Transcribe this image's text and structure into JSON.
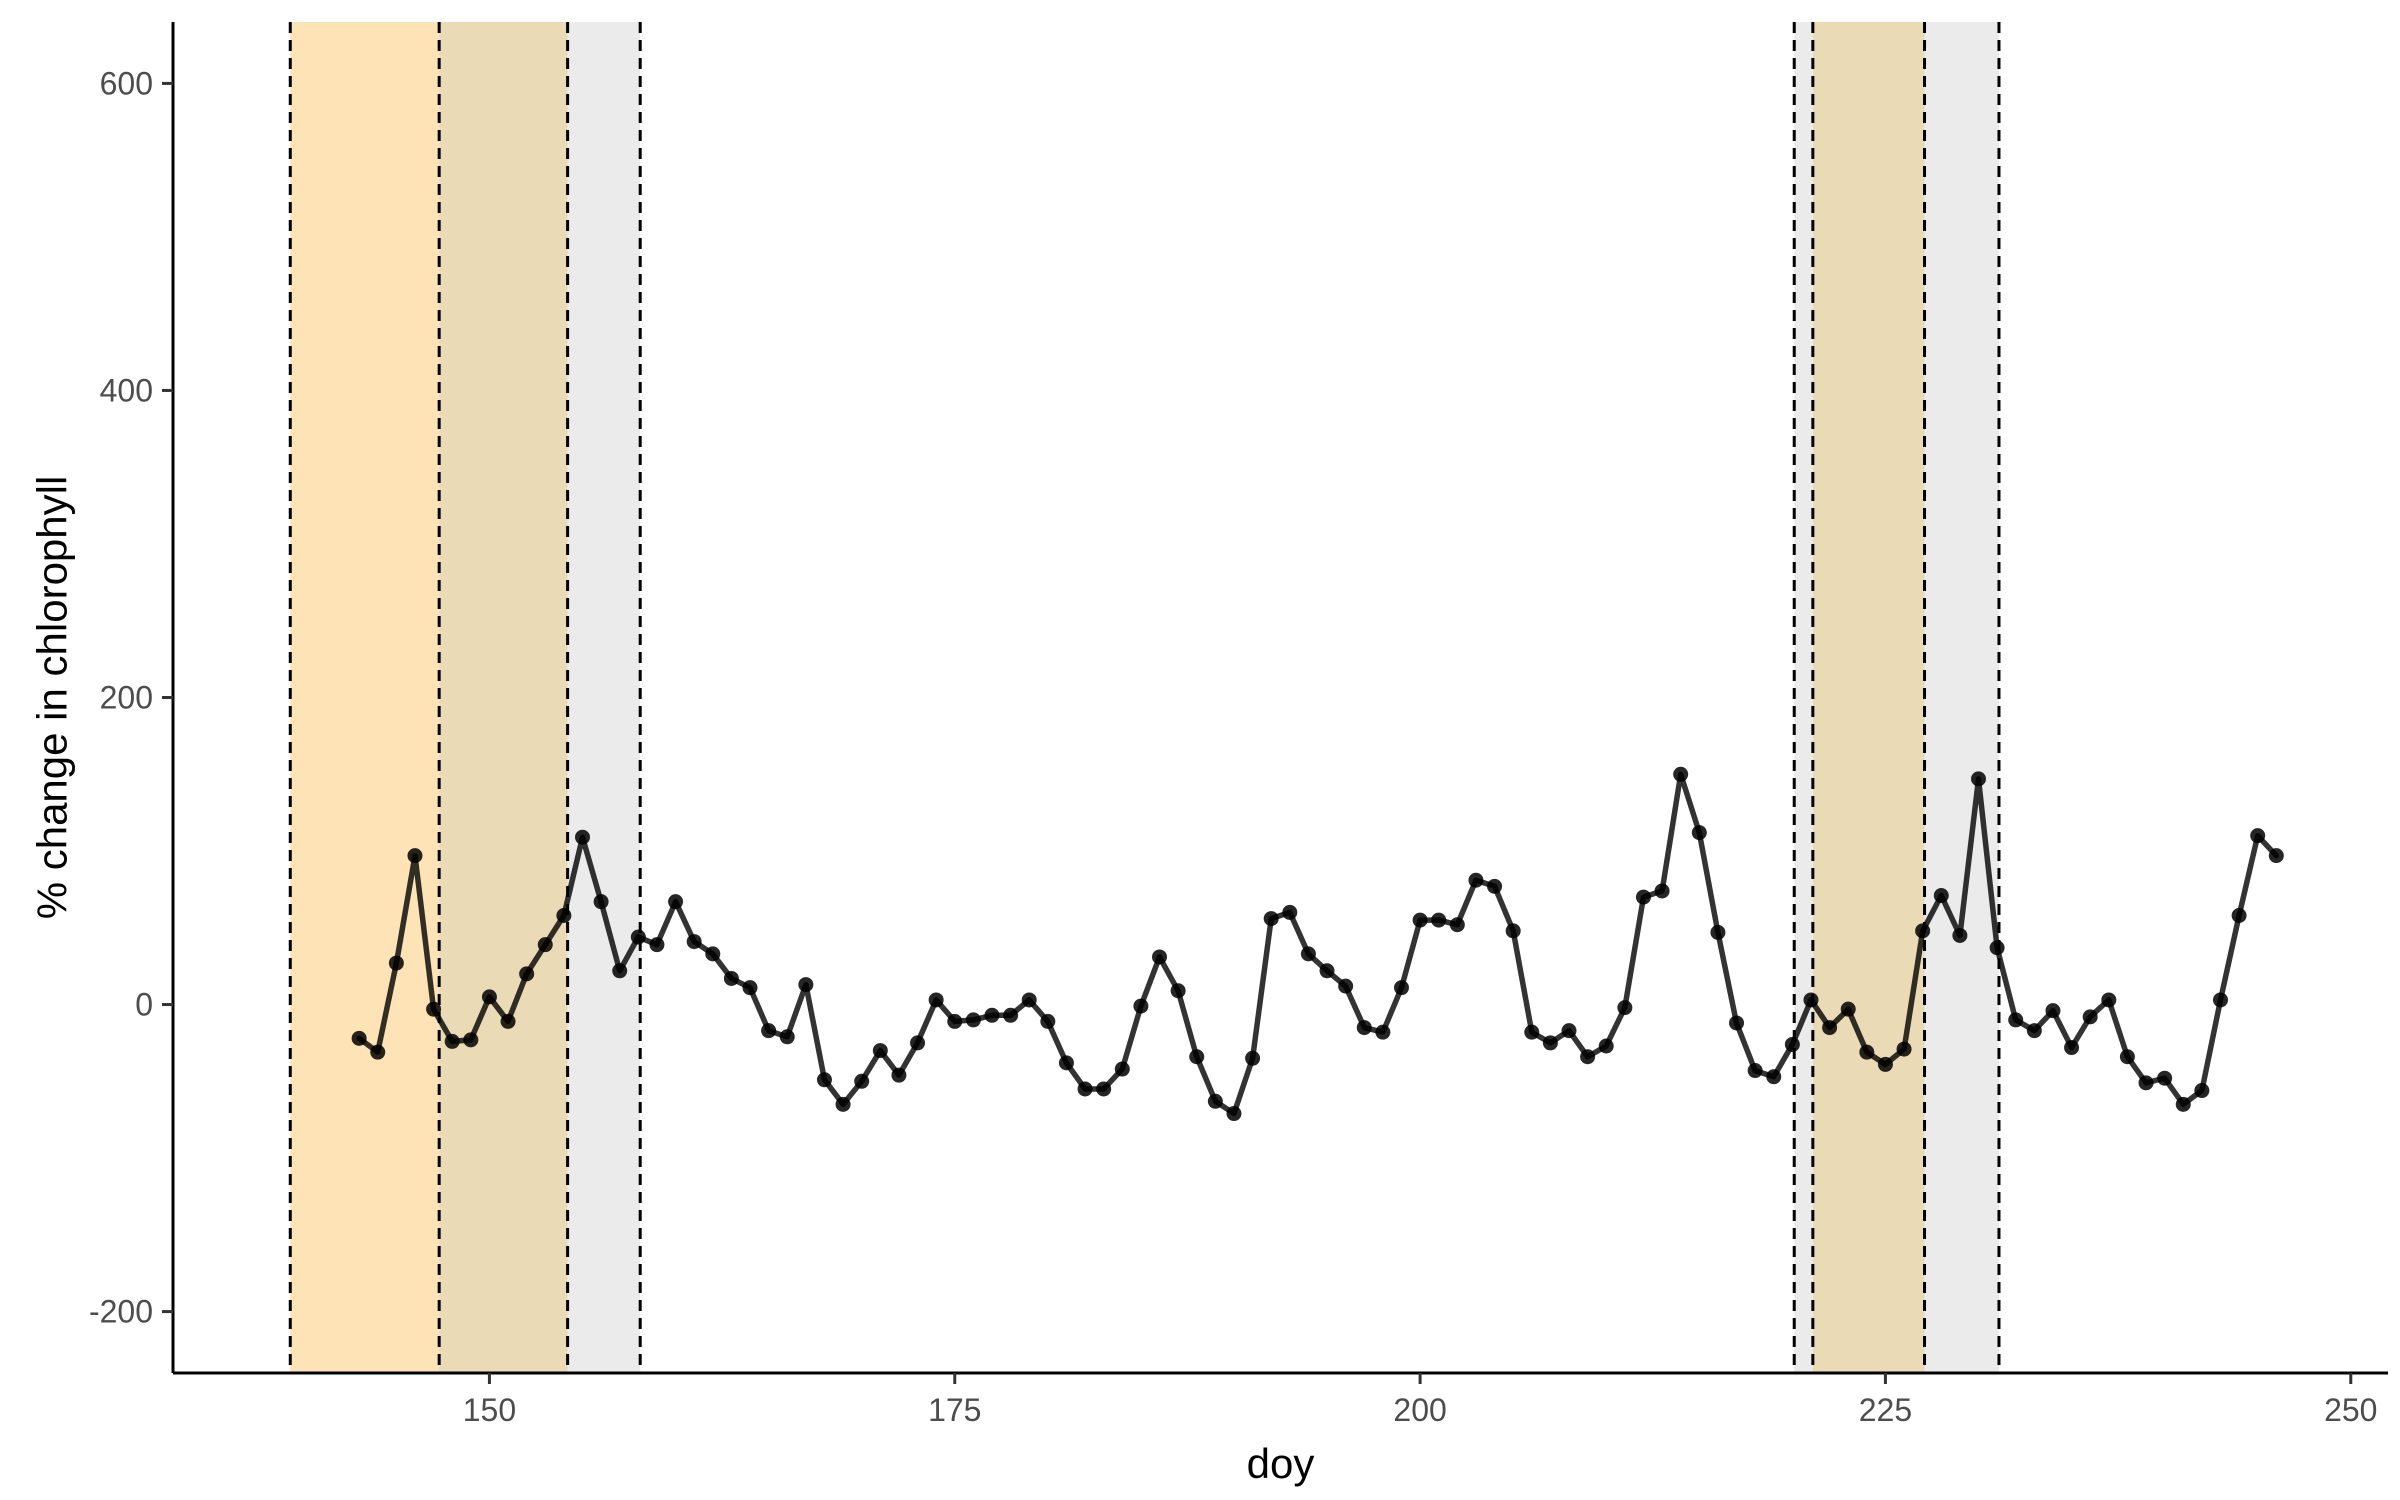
{
  "chart_data": {
    "type": "line",
    "title": "",
    "xlabel": "doy",
    "ylabel": "% change in chlorophyll",
    "xlim": [
      133,
      252
    ],
    "ylim": [
      -240,
      640
    ],
    "x_ticks": [
      150,
      175,
      200,
      225,
      250
    ],
    "y_ticks": [
      -200,
      0,
      200,
      400,
      600
    ],
    "grid": false,
    "legend": "none",
    "colors": {
      "line": "#000000",
      "band_light": "#FDE3B6",
      "band_mid": "#EBDAB6",
      "band_grey": "#EBEBEB",
      "axis": "#000000",
      "tick_text": "#4d4d4d"
    },
    "shaded_bands": [
      {
        "x0": 139.3,
        "x1": 147.3,
        "color": "#FDE3B6"
      },
      {
        "x0": 147.3,
        "x1": 154.2,
        "color": "#EBDAB6"
      },
      {
        "x0": 154.2,
        "x1": 158.1,
        "color": "#EBEBEB"
      },
      {
        "x0": 220.1,
        "x1": 221.1,
        "color": "#EBEBEB"
      },
      {
        "x0": 221.1,
        "x1": 227.1,
        "color": "#EBDAB6"
      },
      {
        "x0": 227.1,
        "x1": 231.1,
        "color": "#EBEBEB"
      }
    ],
    "vlines": [
      139.3,
      147.3,
      154.2,
      158.1,
      220.1,
      221.1,
      227.1,
      231.1
    ],
    "series": [
      {
        "x": [
          143,
          144,
          145,
          146,
          147,
          148,
          149,
          150,
          151,
          152,
          153,
          154,
          155,
          156,
          157,
          158,
          159,
          160,
          161,
          162,
          163,
          164,
          165,
          166,
          167,
          168,
          169,
          170,
          171,
          172,
          173,
          174,
          175,
          176,
          177,
          178,
          179,
          180,
          181,
          182,
          183,
          184,
          185,
          186,
          187,
          188,
          189,
          190,
          191,
          192,
          193,
          194,
          195,
          196,
          197,
          198,
          199,
          200,
          201,
          202,
          203,
          204,
          205,
          206,
          207,
          208,
          209,
          210,
          211,
          212,
          213,
          214,
          215,
          216,
          217,
          218,
          219,
          220,
          221,
          222,
          223,
          224,
          225,
          226,
          227,
          228,
          229,
          230,
          231,
          232,
          233,
          234,
          235,
          236,
          237,
          238,
          239,
          240,
          241,
          242,
          243,
          244,
          245,
          246
        ],
        "y": [
          -22,
          -31,
          27,
          97,
          -3,
          -24,
          -23,
          5,
          -11,
          20,
          39,
          58,
          109,
          67,
          22,
          44,
          39,
          67,
          41,
          33,
          17,
          11,
          -17,
          -21,
          13,
          -49,
          -65,
          -50,
          -30,
          -46,
          -25,
          3,
          -11,
          -10,
          -7,
          -7,
          3,
          -11,
          -38,
          -55,
          -55,
          -42,
          -1,
          31,
          9,
          -34,
          -63,
          -71,
          -35,
          56,
          60,
          33,
          22,
          12,
          -15,
          -18,
          11,
          55,
          55,
          52,
          81,
          77,
          48,
          -18,
          -25,
          -17,
          -34,
          -27,
          -2,
          70,
          74,
          150,
          112,
          47,
          -12,
          -43,
          -47,
          -26,
          3,
          -15,
          -3,
          -31,
          -39,
          -29,
          48,
          71,
          45,
          147,
          37,
          -10,
          -17,
          -4,
          -28,
          -8,
          3,
          -34,
          -51,
          -48,
          -65,
          -56,
          3,
          58,
          110,
          97
        ]
      }
    ]
  }
}
